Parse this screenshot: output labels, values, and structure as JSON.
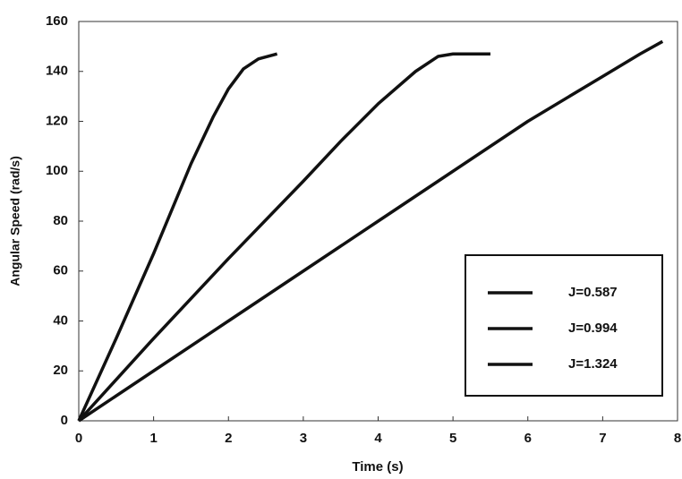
{
  "chart_data": {
    "type": "line",
    "x_label": "Time (s)",
    "y_label": "Angular Speed (rad/s)",
    "xlim": [
      0,
      8
    ],
    "ylim": [
      0,
      160
    ],
    "xticks": [
      0,
      1,
      2,
      3,
      4,
      5,
      6,
      7,
      8
    ],
    "yticks": [
      0,
      20,
      40,
      60,
      80,
      100,
      120,
      140,
      160
    ],
    "grid": false,
    "legend": "lower right",
    "series": [
      {
        "name": "J=0.587",
        "color": "#111111",
        "x": [
          0,
          0.5,
          1,
          1.5,
          1.8,
          2.0,
          2.2,
          2.4,
          2.65
        ],
        "values": [
          0,
          33,
          67,
          103,
          122,
          133,
          141,
          145,
          147
        ]
      },
      {
        "name": "J=0.994",
        "color": "#111111",
        "x": [
          0,
          1,
          2,
          3,
          3.5,
          4,
          4.5,
          4.8,
          5.0,
          5.5
        ],
        "values": [
          0,
          33,
          65,
          96,
          112,
          127,
          140,
          146,
          147,
          147
        ]
      },
      {
        "name": "J=1.324",
        "color": "#111111",
        "x": [
          0,
          1,
          2,
          3,
          4,
          5,
          6,
          7,
          7.5,
          7.8
        ],
        "values": [
          0,
          20,
          40,
          60,
          80,
          100,
          120,
          138,
          147,
          152
        ]
      }
    ]
  }
}
